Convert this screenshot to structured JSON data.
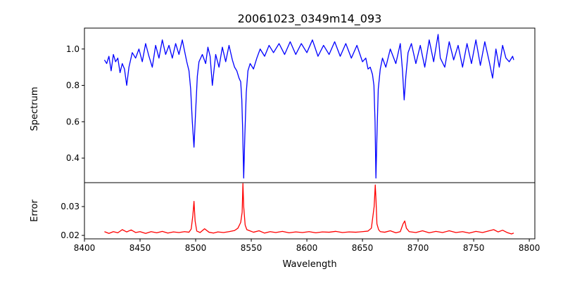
{
  "chart_data": [
    {
      "type": "line",
      "title": "20061023_0349m14_093",
      "ylabel": "Spectrum",
      "xlabel": "",
      "xlim": [
        8400,
        8805
      ],
      "ylim": [
        0.265,
        1.115
      ],
      "yticks": [
        0.4,
        0.6,
        0.8,
        1.0
      ],
      "ytick_labels": [
        "0.4",
        "0.6",
        "0.8",
        "1.0"
      ],
      "xtick_labels_shown": false,
      "series": [
        {
          "color": "#0000ff",
          "x": [
            8418,
            8420,
            8422,
            8424,
            8426,
            8428,
            8430,
            8432,
            8434,
            8436,
            8438,
            8440,
            8443,
            8446,
            8449,
            8452,
            8455,
            8458,
            8461,
            8464,
            8467,
            8470,
            8473,
            8476,
            8479,
            8482,
            8485,
            8488,
            8490,
            8492,
            8494,
            8495.5,
            8497,
            8498.5,
            8500,
            8501.5,
            8503,
            8506,
            8509,
            8511,
            8513,
            8515,
            8518,
            8521,
            8524,
            8527,
            8530,
            8533,
            8535,
            8537,
            8539,
            8540.5,
            8541.5,
            8542.3,
            8543.2,
            8544.2,
            8545.5,
            8547,
            8549,
            8552,
            8555,
            8558,
            8562,
            8566,
            8570,
            8575,
            8580,
            8585,
            8590,
            8595,
            8600,
            8605,
            8610,
            8615,
            8620,
            8625,
            8630,
            8635,
            8640,
            8645,
            8650,
            8653,
            8655,
            8657,
            8659,
            8660.3,
            8661.3,
            8662.1,
            8663,
            8664.2,
            8666,
            8668,
            8671,
            8675,
            8680,
            8684,
            8686,
            8687.5,
            8689,
            8691,
            8694,
            8698,
            8702,
            8706,
            8710,
            8714,
            8718,
            8720,
            8724,
            8728,
            8732,
            8736,
            8740,
            8744,
            8748,
            8752,
            8756,
            8760,
            8764,
            8767,
            8770,
            8773,
            8776,
            8779,
            8782,
            8785,
            8786
          ],
          "y": [
            0.94,
            0.92,
            0.96,
            0.88,
            0.97,
            0.93,
            0.95,
            0.87,
            0.92,
            0.89,
            0.8,
            0.9,
            0.98,
            0.95,
            1.0,
            0.93,
            1.03,
            0.96,
            0.9,
            1.02,
            0.95,
            1.05,
            0.97,
            1.02,
            0.95,
            1.03,
            0.97,
            1.05,
            0.99,
            0.93,
            0.88,
            0.78,
            0.6,
            0.46,
            0.66,
            0.85,
            0.93,
            0.97,
            0.92,
            1.01,
            0.96,
            0.8,
            0.97,
            0.9,
            1.01,
            0.93,
            1.02,
            0.94,
            0.9,
            0.88,
            0.84,
            0.82,
            0.72,
            0.55,
            0.29,
            0.52,
            0.76,
            0.88,
            0.92,
            0.89,
            0.95,
            1.0,
            0.96,
            1.02,
            0.98,
            1.03,
            0.97,
            1.04,
            0.97,
            1.03,
            0.98,
            1.05,
            0.96,
            1.02,
            0.97,
            1.04,
            0.96,
            1.03,
            0.95,
            1.02,
            0.93,
            0.95,
            0.89,
            0.9,
            0.86,
            0.8,
            0.6,
            0.29,
            0.52,
            0.78,
            0.89,
            0.95,
            0.9,
            1.0,
            0.92,
            1.03,
            0.88,
            0.72,
            0.85,
            0.98,
            1.03,
            0.92,
            1.02,
            0.9,
            1.05,
            0.93,
            1.08,
            0.95,
            0.9,
            1.04,
            0.94,
            1.02,
            0.9,
            1.03,
            0.92,
            1.05,
            0.91,
            1.04,
            0.93,
            0.84,
            1.0,
            0.9,
            1.02,
            0.95,
            0.93,
            0.96,
            0.94
          ]
        }
      ]
    },
    {
      "type": "line",
      "title": "",
      "ylabel": "Error",
      "xlabel": "Wavelength",
      "xlim": [
        8400,
        8805
      ],
      "ylim": [
        0.0188,
        0.0383
      ],
      "xticks": [
        8400,
        8450,
        8500,
        8550,
        8600,
        8650,
        8700,
        8750,
        8800
      ],
      "xtick_labels": [
        "8400",
        "8450",
        "8500",
        "8550",
        "8600",
        "8650",
        "8700",
        "8750",
        "8800"
      ],
      "yticks": [
        0.02,
        0.03
      ],
      "ytick_labels": [
        "0.02",
        "0.03"
      ],
      "series": [
        {
          "color": "#ff0000",
          "x": [
            8418,
            8422,
            8426,
            8430,
            8434,
            8438,
            8442,
            8446,
            8450,
            8455,
            8460,
            8465,
            8470,
            8475,
            8480,
            8485,
            8490,
            8494,
            8496,
            8497.5,
            8498.5,
            8499.5,
            8501,
            8504,
            8508,
            8512,
            8516,
            8520,
            8525,
            8530,
            8535,
            8538,
            8540.5,
            8541.8,
            8542.5,
            8543.2,
            8544.5,
            8546,
            8548,
            8552,
            8557,
            8562,
            8567,
            8572,
            8578,
            8584,
            8590,
            8596,
            8602,
            8608,
            8614,
            8620,
            8626,
            8632,
            8638,
            8644,
            8650,
            8655,
            8658,
            8660.5,
            8661.5,
            8662.2,
            8663,
            8664.5,
            8666,
            8670,
            8675,
            8680,
            8684,
            8686.5,
            8688,
            8689.5,
            8692,
            8698,
            8704,
            8710,
            8716,
            8722,
            8728,
            8734,
            8740,
            8746,
            8752,
            8758,
            8764,
            8768,
            8772,
            8776,
            8780,
            8784,
            8786
          ],
          "y": [
            0.0213,
            0.0207,
            0.0213,
            0.0209,
            0.022,
            0.0212,
            0.0219,
            0.021,
            0.0213,
            0.0207,
            0.0213,
            0.0209,
            0.0214,
            0.0208,
            0.0212,
            0.021,
            0.0213,
            0.0211,
            0.0222,
            0.027,
            0.0318,
            0.025,
            0.0215,
            0.021,
            0.0223,
            0.0211,
            0.0208,
            0.0212,
            0.021,
            0.0213,
            0.0217,
            0.0225,
            0.0245,
            0.028,
            0.038,
            0.03,
            0.0236,
            0.022,
            0.0217,
            0.0211,
            0.0216,
            0.0208,
            0.0213,
            0.021,
            0.0214,
            0.0209,
            0.0212,
            0.021,
            0.0213,
            0.0209,
            0.0212,
            0.0211,
            0.0214,
            0.021,
            0.0212,
            0.0211,
            0.0213,
            0.0215,
            0.0225,
            0.03,
            0.0375,
            0.032,
            0.024,
            0.022,
            0.0213,
            0.0211,
            0.0216,
            0.0209,
            0.0213,
            0.024,
            0.025,
            0.0225,
            0.0213,
            0.021,
            0.0216,
            0.0209,
            0.0214,
            0.021,
            0.0216,
            0.021,
            0.0213,
            0.0208,
            0.0214,
            0.021,
            0.0216,
            0.022,
            0.0212,
            0.0218,
            0.021,
            0.0205,
            0.0208
          ]
        }
      ]
    }
  ]
}
